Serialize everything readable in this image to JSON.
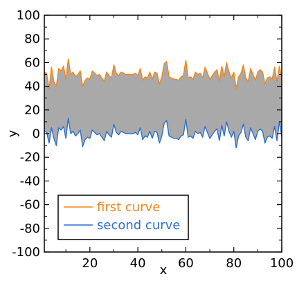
{
  "chart_data": {
    "type": "area",
    "title": "",
    "xlabel": "x",
    "ylabel": "y",
    "xlim": [
      1,
      100
    ],
    "ylim": [
      -100,
      100
    ],
    "xticks": [
      20,
      40,
      60,
      80,
      100
    ],
    "yticks": [
      -100,
      -80,
      -60,
      -40,
      -20,
      0,
      20,
      40,
      60,
      80,
      100
    ],
    "grid": false,
    "legend_position": "bottom-left",
    "fill_color": "#a9a9a9",
    "x": [
      1,
      2,
      3,
      4,
      5,
      6,
      7,
      8,
      9,
      10,
      11,
      12,
      13,
      14,
      15,
      16,
      17,
      18,
      19,
      20,
      21,
      22,
      23,
      24,
      25,
      26,
      27,
      28,
      29,
      30,
      31,
      32,
      33,
      34,
      35,
      36,
      37,
      38,
      39,
      40,
      41,
      42,
      43,
      44,
      45,
      46,
      47,
      48,
      49,
      50,
      51,
      52,
      53,
      54,
      55,
      56,
      57,
      58,
      59,
      60,
      61,
      62,
      63,
      64,
      65,
      66,
      67,
      68,
      69,
      70,
      71,
      72,
      73,
      74,
      75,
      76,
      77,
      78,
      79,
      80,
      81,
      82,
      83,
      84,
      85,
      86,
      87,
      88,
      89,
      90,
      91,
      92,
      93,
      94,
      95,
      96,
      97,
      98,
      99,
      100
    ],
    "series": [
      {
        "name": "first curve",
        "color": "#f28518",
        "values": [
          52,
          51,
          38,
          56,
          44,
          40,
          55,
          53,
          57,
          46,
          63,
          50,
          52,
          48,
          50,
          53,
          40,
          45,
          47,
          46,
          53,
          51,
          49,
          50,
          47,
          44,
          52,
          49,
          47,
          58,
          51,
          49,
          52,
          51,
          50,
          50,
          50,
          50,
          51,
          49,
          55,
          45,
          48,
          47,
          52,
          46,
          52,
          51,
          42,
          48,
          59,
          61,
          48,
          47,
          46,
          46,
          45,
          48,
          49,
          62,
          47,
          48,
          46,
          52,
          50,
          51,
          47,
          56,
          51,
          46,
          49,
          52,
          54,
          44,
          57,
          48,
          60,
          52,
          47,
          52,
          38,
          48,
          51,
          58,
          47,
          44,
          55,
          50,
          45,
          52,
          54,
          52,
          42,
          47,
          48,
          46,
          56,
          44,
          57,
          47
        ]
      },
      {
        "name": "second curve",
        "color": "#2a6fcf",
        "values": [
          2,
          1,
          -8,
          5,
          -4,
          -10,
          5,
          3,
          6,
          -4,
          13,
          0,
          2,
          -2,
          0,
          3,
          -11,
          -5,
          -3,
          -4,
          3,
          1,
          -1,
          0,
          -3,
          -6,
          2,
          -1,
          -3,
          8,
          1,
          -1,
          2,
          1,
          0,
          0,
          0,
          0,
          1,
          -1,
          5,
          -5,
          -2,
          -3,
          2,
          -4,
          2,
          1,
          -8,
          -2,
          9,
          11,
          -2,
          -3,
          -4,
          -4,
          -5,
          -2,
          -1,
          12,
          -3,
          -2,
          -4,
          2,
          0,
          1,
          -3,
          6,
          1,
          -4,
          -1,
          2,
          4,
          -6,
          7,
          -2,
          10,
          2,
          -3,
          2,
          -12,
          -2,
          1,
          8,
          -3,
          -6,
          5,
          0,
          -5,
          2,
          4,
          2,
          -8,
          -3,
          -2,
          -4,
          6,
          -6,
          10,
          -3
        ]
      }
    ]
  }
}
